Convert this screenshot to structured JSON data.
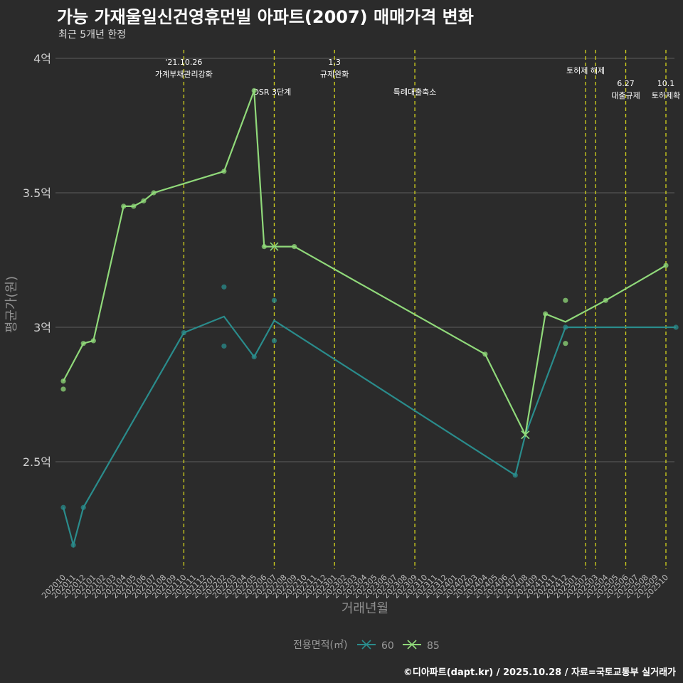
{
  "title": "가능 가재울일신건영휴먼빌 아파트(2007) 매매가격 변화",
  "subtitle": "최근 5개년 한정",
  "caption": "©디아파트(dapt.kr) / 2025.10.28 / 자료=국토교통부 실거래가",
  "chart_data": {
    "type": "line",
    "title": "가능 가재울일신건영휴먼빌 아파트(2007) 매매가격 변화",
    "xlabel": "거래년월",
    "ylabel": "평균가(원)",
    "ylim": [
      2.12,
      4.05
    ],
    "yticks": [
      {
        "value": 2.5,
        "label": "2.5억"
      },
      {
        "value": 3.0,
        "label": "3억"
      },
      {
        "value": 3.5,
        "label": "3.5억"
      },
      {
        "value": 4.0,
        "label": "4억"
      }
    ],
    "categories": [
      "202010",
      "202011",
      "202012",
      "202101",
      "202102",
      "202103",
      "202104",
      "202105",
      "202106",
      "202107",
      "202108",
      "202109",
      "202110",
      "202111",
      "202112",
      "202201",
      "202202",
      "202203",
      "202204",
      "202205",
      "202206",
      "202207",
      "202208",
      "202209",
      "202210",
      "202211",
      "202212",
      "202301",
      "202302",
      "202303",
      "202304",
      "202305",
      "202306",
      "202307",
      "202308",
      "202309",
      "202310",
      "202311",
      "202312",
      "202401",
      "202402",
      "202403",
      "202404",
      "202405",
      "202406",
      "202407",
      "202408",
      "202409",
      "202410",
      "202411",
      "202412",
      "202501",
      "202502",
      "202503",
      "202504",
      "202505",
      "202506",
      "202507",
      "202508",
      "202509",
      "202510"
    ],
    "legend_title": "전용면적(㎡)",
    "series": [
      {
        "name": "60",
        "color": "#2a8c8c",
        "line": [
          [
            "202010",
            2.33
          ],
          [
            "202011",
            2.19
          ],
          [
            "202012",
            2.33
          ],
          [
            "202110",
            2.98
          ],
          [
            "202202",
            3.04
          ],
          [
            "202205",
            2.89
          ],
          [
            "202207",
            3.025
          ],
          [
            "202407",
            2.45
          ],
          [
            "202408",
            2.6
          ],
          [
            "202412",
            3.0
          ],
          [
            "202511",
            3.0
          ]
        ],
        "points": [
          [
            "202010",
            2.33
          ],
          [
            "202011",
            2.19
          ],
          [
            "202012",
            2.33
          ],
          [
            "202110",
            2.98
          ],
          [
            "202202",
            3.15
          ],
          [
            "202202",
            2.93
          ],
          [
            "202205",
            2.89
          ],
          [
            "202207",
            3.1
          ],
          [
            "202207",
            2.95
          ],
          [
            "202407",
            2.45
          ],
          [
            "202412",
            3.0
          ],
          [
            "202511",
            3.0
          ]
        ],
        "cross": [
          [
            "202408",
            2.6
          ]
        ]
      },
      {
        "name": "85",
        "color": "#90d97a",
        "line": [
          [
            "202010",
            2.8
          ],
          [
            "202012",
            2.94
          ],
          [
            "202101",
            2.95
          ],
          [
            "202104",
            3.45
          ],
          [
            "202105",
            3.45
          ],
          [
            "202106",
            3.47
          ],
          [
            "202107",
            3.5
          ],
          [
            "202202",
            3.58
          ],
          [
            "202205",
            3.88
          ],
          [
            "202206",
            3.3
          ],
          [
            "202207",
            3.3
          ],
          [
            "202209",
            3.3
          ],
          [
            "202404",
            2.9
          ],
          [
            "202408",
            2.6
          ],
          [
            "202410",
            3.05
          ],
          [
            "202412",
            3.02
          ],
          [
            "202504",
            3.1
          ],
          [
            "202510",
            3.23
          ]
        ],
        "points": [
          [
            "202010",
            2.8
          ],
          [
            "202010",
            2.77
          ],
          [
            "202012",
            2.94
          ],
          [
            "202101",
            2.95
          ],
          [
            "202104",
            3.45
          ],
          [
            "202105",
            3.45
          ],
          [
            "202106",
            3.47
          ],
          [
            "202107",
            3.5
          ],
          [
            "202202",
            3.58
          ],
          [
            "202205",
            3.88
          ],
          [
            "202206",
            3.3
          ],
          [
            "202209",
            3.3
          ],
          [
            "202404",
            2.9
          ],
          [
            "202410",
            3.05
          ],
          [
            "202412",
            3.1
          ],
          [
            "202412",
            2.94
          ],
          [
            "202504",
            3.1
          ],
          [
            "202510",
            3.23
          ]
        ],
        "cross": [
          [
            "202207",
            3.3
          ],
          [
            "202408",
            2.6
          ]
        ]
      }
    ],
    "events": [
      {
        "month": "202110",
        "lines": [
          "'21.10.26",
          "가계부채관리강화"
        ],
        "level": 0
      },
      {
        "month": "202207",
        "lines": [
          "DSR 3단계"
        ],
        "level": 2,
        "anchor": "start"
      },
      {
        "month": "202301",
        "lines": [
          "1.3",
          "규제완화"
        ],
        "level": 0
      },
      {
        "month": "202309",
        "lines": [
          "특례대출축소"
        ],
        "level": 2
      },
      {
        "month": "202502",
        "lines": [
          "토허제 해제"
        ],
        "level": 1
      },
      {
        "month": "202503",
        "lines": [],
        "level": 1
      },
      {
        "month": "202506",
        "lines": [
          "6.27",
          "대출규제"
        ],
        "level": 3
      },
      {
        "month": "202510",
        "lines": [
          "10.1",
          "토허제확"
        ],
        "level": 3
      }
    ]
  }
}
